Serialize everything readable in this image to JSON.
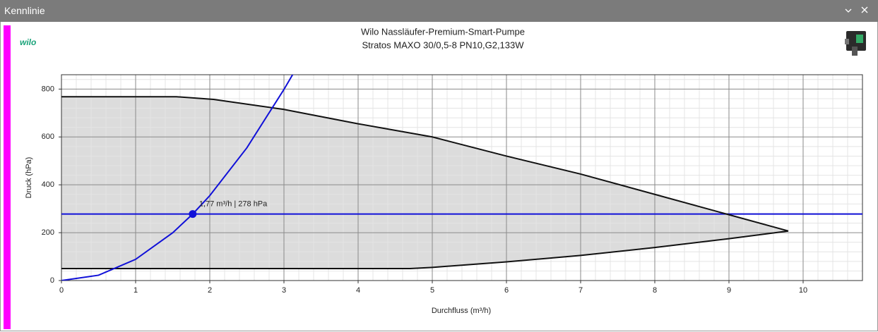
{
  "window": {
    "title": "Kennlinie"
  },
  "logo": "wilo",
  "chart_data": {
    "type": "line",
    "title": "Wilo Nassläufer-Premium-Smart-Pumpe",
    "subtitle": "Stratos MAXO 30/0,5-8 PN10,G2,133W",
    "x_label": "Durchfluss (m³/h)",
    "y_label": "Druck (hPa)",
    "xlim": [
      0,
      10.8
    ],
    "ylim": [
      0,
      860
    ],
    "xticks": [
      0,
      1,
      2,
      3,
      4,
      5,
      6,
      7,
      8,
      9,
      10
    ],
    "yticks": [
      0,
      200,
      400,
      600,
      800
    ],
    "grid": true,
    "minor_divisions": 5,
    "area_color": "#dcdcdc",
    "series": [
      {
        "color": "#111111",
        "x": [
          0,
          1.55,
          2.05,
          3,
          4,
          5,
          6,
          7,
          8,
          9,
          9.8
        ],
        "values": [
          768,
          768,
          757,
          715,
          655,
          600,
          520,
          445,
          360,
          275,
          207
        ]
      },
      {
        "color": "#111111",
        "x": [
          0,
          4.7,
          5,
          6,
          7,
          8,
          9,
          9.8
        ],
        "values": [
          50,
          50,
          55,
          78,
          105,
          138,
          175,
          207
        ]
      },
      {
        "color": "#1010d8",
        "x": [
          0,
          0.5,
          1,
          1.5,
          1.77,
          2,
          2.5,
          3,
          3.12
        ],
        "values": [
          0,
          22.2,
          88.7,
          199.6,
          278,
          354.9,
          554.6,
          798.6,
          862
        ]
      }
    ],
    "hline": {
      "value": 278,
      "color": "#1010d8"
    },
    "operating_point": {
      "x": 1.77,
      "y": 278,
      "color": "#1010d8",
      "label": "1,77 m³/h | 278 hPa"
    }
  }
}
